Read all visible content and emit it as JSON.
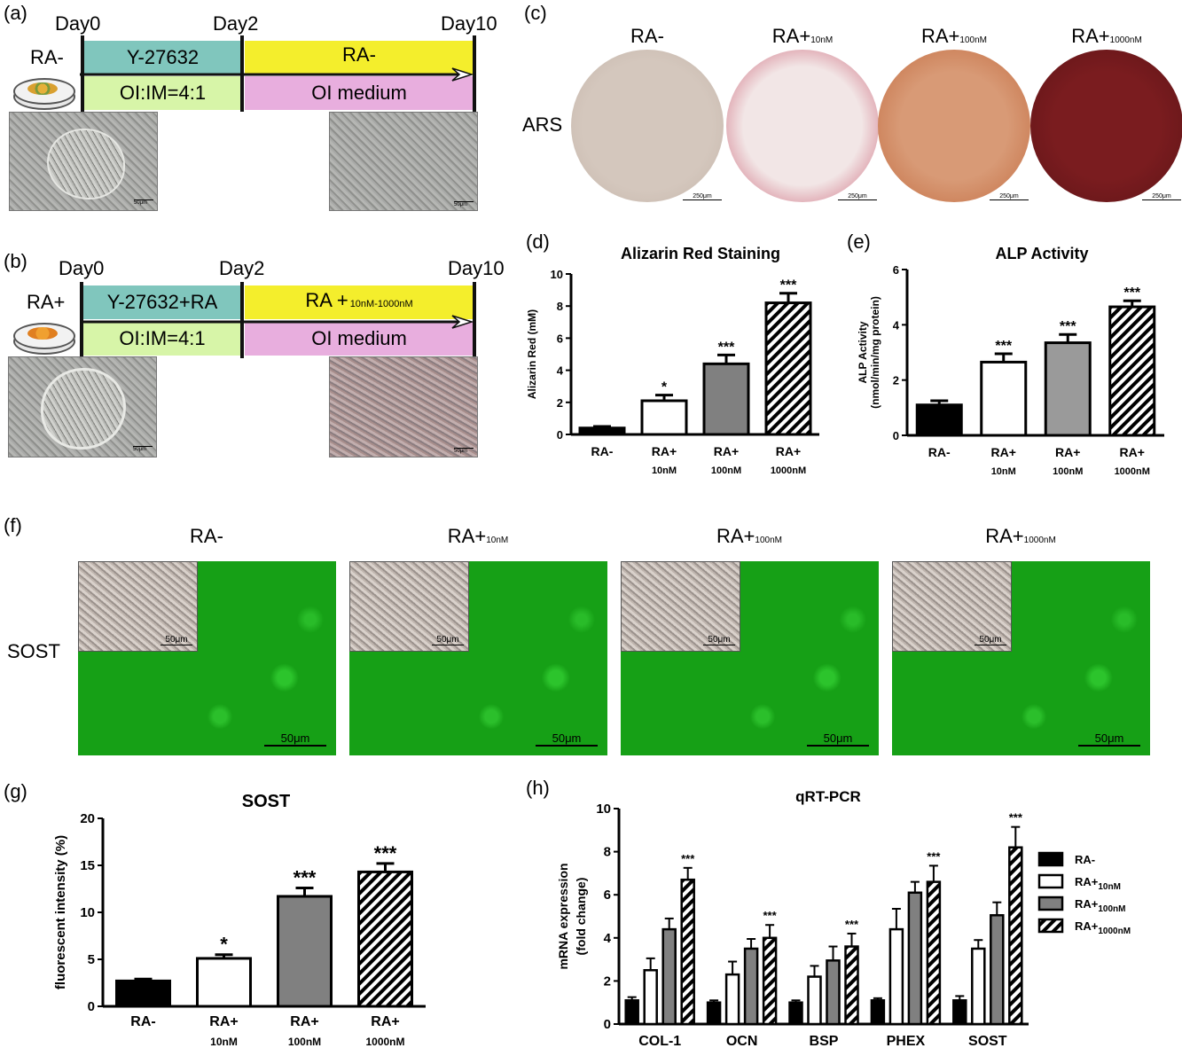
{
  "panel_a": {
    "label": "(a)",
    "day0": "Day0",
    "day2": "Day2",
    "day10": "Day10",
    "condition": "RA-",
    "box_top_left": "Y-27632",
    "box_top_right": "RA-",
    "box_bottom_left": "OI:IM=4:1",
    "box_bottom_right": "OI medium",
    "scale1": "50μm",
    "scale2": "50μm"
  },
  "panel_b": {
    "label": "(b)",
    "day0": "Day0",
    "day2": "Day2",
    "day10": "Day10",
    "condition": "RA+",
    "box_top_left": "Y-27632+RA",
    "box_top_right_main": "RA +",
    "box_top_right_sub": "10nM-1000nM",
    "box_bottom_left": "OI:IM=4:1",
    "box_bottom_right": "OI medium",
    "scale1": "50μm",
    "scale2": "50μm"
  },
  "panel_c": {
    "label": "(c)",
    "row_label": "ARS",
    "columns": [
      {
        "main": "RA-",
        "sub": ""
      },
      {
        "main": "RA+",
        "sub": "10nM"
      },
      {
        "main": "RA+",
        "sub": "100nM"
      },
      {
        "main": "RA+",
        "sub": "1000nM"
      }
    ],
    "scale": "250μm",
    "colors": [
      "#cdbfb4",
      "#ecdcdc",
      "#cf8a63",
      "#6e1a1d"
    ]
  },
  "panel_f": {
    "label": "(f)",
    "row_label": "SOST",
    "columns": [
      {
        "main": "RA-",
        "sub": ""
      },
      {
        "main": "RA+",
        "sub": "10nM"
      },
      {
        "main": "RA+",
        "sub": "100nM"
      },
      {
        "main": "RA+",
        "sub": "1000nM"
      }
    ],
    "inset_scale": "50μm",
    "main_scale": "50μm"
  },
  "chart_data": [
    {
      "id": "d",
      "panel_label": "(d)",
      "type": "bar",
      "title": "Alizarin Red  Staining",
      "ylabel": "Alizarin Red  (mM)",
      "ylim": [
        0,
        10
      ],
      "yticks": [
        0,
        2,
        4,
        6,
        8,
        10
      ],
      "categories": [
        {
          "line1": "RA-",
          "line2": ""
        },
        {
          "line1": "RA+",
          "line2": "10nM"
        },
        {
          "line1": "RA+",
          "line2": "100nM"
        },
        {
          "line1": "RA+",
          "line2": "1000nM"
        }
      ],
      "values": [
        0.4,
        2.1,
        4.4,
        8.2
      ],
      "errors": [
        0.1,
        0.35,
        0.55,
        0.6
      ],
      "significance": [
        "",
        "*",
        "***",
        "***"
      ],
      "fills": [
        "black",
        "white",
        "gray",
        "hatch"
      ]
    },
    {
      "id": "e",
      "panel_label": "(e)",
      "type": "bar",
      "title": "ALP Activity",
      "ylabel_line1": "ALP Activity",
      "ylabel_line2": "(nmol/min/mg protein)",
      "ylim": [
        0,
        6
      ],
      "yticks": [
        0,
        2,
        4,
        6
      ],
      "categories": [
        {
          "line1": "RA-",
          "line2": ""
        },
        {
          "line1": "RA+",
          "line2": "10nM"
        },
        {
          "line1": "RA+",
          "line2": "100nM"
        },
        {
          "line1": "RA+",
          "line2": "1000nM"
        }
      ],
      "values": [
        1.1,
        2.65,
        3.35,
        4.65
      ],
      "errors": [
        0.15,
        0.3,
        0.3,
        0.22
      ],
      "significance": [
        "",
        "***",
        "***",
        "***"
      ],
      "fills": [
        "black",
        "white",
        "lightgray",
        "hatch"
      ]
    },
    {
      "id": "g",
      "panel_label": "(g)",
      "type": "bar",
      "title": "SOST",
      "ylabel": "fluorescent intensity (%)",
      "ylim": [
        0,
        20
      ],
      "yticks": [
        0,
        5,
        10,
        15,
        20
      ],
      "categories": [
        {
          "line1": "RA-",
          "line2": ""
        },
        {
          "line1": "RA+",
          "line2": "10nM"
        },
        {
          "line1": "RA+",
          "line2": "100nM"
        },
        {
          "line1": "RA+",
          "line2": "1000nM"
        }
      ],
      "values": [
        2.7,
        5.1,
        11.7,
        14.3
      ],
      "errors": [
        0.2,
        0.4,
        0.9,
        0.9
      ],
      "significance": [
        "",
        "*",
        "***",
        "***"
      ],
      "fills": [
        "black",
        "white",
        "gray",
        "hatch"
      ]
    },
    {
      "id": "h",
      "panel_label": "(h)",
      "type": "bar",
      "title": "qRT-PCR",
      "ylabel_line1": "mRNA expression",
      "ylabel_line2": "(fold change)",
      "ylim": [
        0,
        10
      ],
      "yticks": [
        0,
        2,
        4,
        6,
        8,
        10
      ],
      "categories": [
        "COL-1",
        "OCN",
        "BSP",
        "PHEX",
        "SOST"
      ],
      "series": [
        {
          "name": "RA-",
          "sub": "",
          "values": [
            1.1,
            1.0,
            1.0,
            1.1,
            1.1
          ],
          "errors": [
            0.15,
            0.1,
            0.1,
            0.1,
            0.2
          ],
          "fill": "black"
        },
        {
          "name": "RA+",
          "sub": "10nM",
          "values": [
            2.5,
            2.3,
            2.2,
            4.4,
            3.5
          ],
          "errors": [
            0.55,
            0.6,
            0.5,
            0.95,
            0.4
          ],
          "fill": "white"
        },
        {
          "name": "RA+",
          "sub": "100nM",
          "values": [
            4.4,
            3.5,
            2.95,
            6.1,
            5.05
          ],
          "errors": [
            0.5,
            0.45,
            0.65,
            0.5,
            0.6
          ],
          "fill": "gray"
        },
        {
          "name": "RA+",
          "sub": "1000nM",
          "values": [
            6.7,
            4.0,
            3.6,
            6.6,
            8.2
          ],
          "errors": [
            0.55,
            0.6,
            0.6,
            0.75,
            0.95
          ],
          "fill": "hatch"
        }
      ],
      "significance": [
        "***",
        "***",
        "***",
        "***",
        "***"
      ]
    }
  ]
}
